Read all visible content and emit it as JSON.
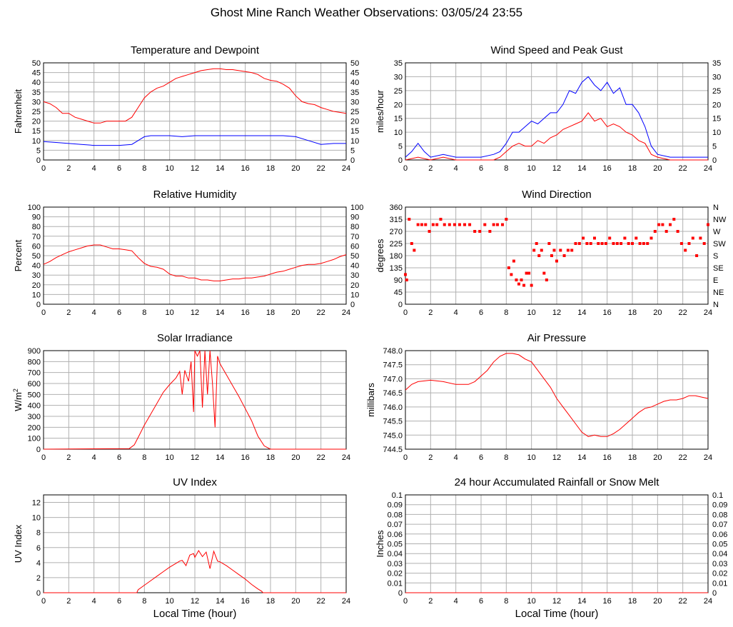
{
  "title": "Ghost Mine Ranch Weather Observations: 03/05/24 23:55",
  "x_axis_label": "Local Time (hour)",
  "colors": {
    "series_red": "#ff0000",
    "series_blue": "#0000ff",
    "grid": "#b0b0b0"
  },
  "chart_data": [
    {
      "id": "temp",
      "type": "line",
      "title": "Temperature and Dewpoint",
      "ylabel": "Fahrenheit",
      "xlim": [
        0,
        24
      ],
      "xticks": [
        0,
        2,
        4,
        6,
        8,
        10,
        12,
        14,
        16,
        18,
        20,
        22,
        24
      ],
      "ylim": [
        0,
        50
      ],
      "yticks": [
        0,
        5,
        10,
        15,
        20,
        25,
        30,
        35,
        40,
        45,
        50
      ],
      "right_axis": true,
      "grid": true,
      "series": [
        {
          "color": "red",
          "x": [
            0,
            0.5,
            1,
            1.5,
            2,
            2.5,
            3,
            3.5,
            4,
            4.5,
            5,
            5.5,
            6,
            6.5,
            7,
            7.5,
            8,
            8.5,
            9,
            9.5,
            10,
            10.5,
            11,
            11.5,
            12,
            12.5,
            13,
            13.5,
            14,
            14.5,
            15,
            15.5,
            16,
            16.5,
            17,
            17.5,
            18,
            18.5,
            19,
            19.5,
            20,
            20.5,
            21,
            21.5,
            22,
            22.5,
            23,
            23.5,
            24
          ],
          "y": [
            30,
            29,
            27,
            24,
            24,
            22,
            21,
            20,
            19,
            19,
            20,
            20,
            20,
            20,
            22,
            27,
            32,
            35,
            37,
            38,
            40,
            42,
            43,
            44,
            45,
            46,
            46.5,
            47,
            47,
            46.5,
            46.5,
            46,
            45.5,
            45,
            44,
            42,
            41,
            40.5,
            39,
            37,
            33,
            30,
            29,
            28.5,
            27,
            26,
            25,
            24.5,
            24
          ]
        },
        {
          "color": "blue",
          "x": [
            0,
            1,
            2,
            3,
            4,
            5,
            6,
            7,
            7.5,
            8,
            8.5,
            9,
            10,
            11,
            12,
            13,
            14,
            15,
            16,
            17,
            18,
            19,
            20,
            21,
            22,
            23,
            24
          ],
          "y": [
            9.5,
            9,
            8.5,
            8,
            7.5,
            7.5,
            7.5,
            8,
            10,
            12,
            12.5,
            12.5,
            12.5,
            12,
            12.5,
            12.5,
            12.5,
            12.5,
            12.5,
            12.5,
            12.5,
            12.5,
            12,
            10,
            8,
            8.5,
            8.5
          ]
        }
      ]
    },
    {
      "id": "wind",
      "type": "line",
      "title": "Wind Speed and Peak Gust",
      "ylabel": "miles/hour",
      "xlim": [
        0,
        24
      ],
      "xticks": [
        0,
        2,
        4,
        6,
        8,
        10,
        12,
        14,
        16,
        18,
        20,
        22,
        24
      ],
      "ylim": [
        0,
        35
      ],
      "yticks": [
        0,
        5,
        10,
        15,
        20,
        25,
        30,
        35
      ],
      "right_axis": true,
      "grid": true,
      "series": [
        {
          "color": "blue",
          "x": [
            0,
            0.5,
            1,
            1.5,
            2,
            3,
            4,
            5,
            6,
            7,
            7.5,
            8,
            8.5,
            9,
            9.5,
            10,
            10.5,
            11,
            11.5,
            12,
            12.5,
            13,
            13.5,
            14,
            14.5,
            15,
            15.5,
            16,
            16.5,
            17,
            17.5,
            18,
            18.5,
            19,
            19.5,
            20,
            21,
            22,
            23,
            24
          ],
          "y": [
            1,
            3,
            6,
            3,
            1,
            2,
            1,
            1,
            1,
            2,
            3,
            6,
            10,
            10,
            12,
            14,
            13,
            15,
            17,
            17,
            20,
            25,
            24,
            28,
            30,
            27,
            25,
            28,
            24,
            26,
            20,
            20,
            17,
            12,
            5,
            2,
            1,
            1,
            1,
            1
          ]
        },
        {
          "color": "red",
          "x": [
            0,
            1,
            2,
            3,
            4,
            5,
            6,
            7,
            7.5,
            8,
            8.5,
            9,
            9.5,
            10,
            10.5,
            11,
            11.5,
            12,
            12.5,
            13,
            13.5,
            14,
            14.5,
            15,
            15.5,
            16,
            16.5,
            17,
            17.5,
            18,
            18.5,
            19,
            19.5,
            20,
            21,
            22,
            23,
            24
          ],
          "y": [
            0,
            1,
            0,
            1,
            0,
            0,
            0,
            0,
            1,
            3,
            5,
            6,
            5,
            5,
            7,
            6,
            8,
            9,
            11,
            12,
            13,
            14,
            17,
            14,
            15,
            12,
            13,
            12,
            10,
            9,
            7,
            6,
            2,
            1,
            0,
            0,
            0,
            0
          ]
        }
      ]
    },
    {
      "id": "humidity",
      "type": "line",
      "title": "Relative Humidity",
      "ylabel": "Percent",
      "xlim": [
        0,
        24
      ],
      "xticks": [
        0,
        2,
        4,
        6,
        8,
        10,
        12,
        14,
        16,
        18,
        20,
        22,
        24
      ],
      "ylim": [
        0,
        100
      ],
      "yticks": [
        0,
        10,
        20,
        30,
        40,
        50,
        60,
        70,
        80,
        90,
        100
      ],
      "right_axis": true,
      "grid": true,
      "series": [
        {
          "color": "red",
          "x": [
            0,
            0.5,
            1,
            1.5,
            2,
            2.5,
            3,
            3.5,
            4,
            4.5,
            5,
            5.5,
            6,
            6.5,
            7,
            7.5,
            8,
            8.5,
            9,
            9.5,
            10,
            10.5,
            11,
            11.5,
            12,
            12.5,
            13,
            13.5,
            14,
            14.5,
            15,
            15.5,
            16,
            16.5,
            17,
            17.5,
            18,
            18.5,
            19,
            19.5,
            20,
            20.5,
            21,
            21.5,
            22,
            22.5,
            23,
            23.5,
            24
          ],
          "y": [
            41,
            44,
            48,
            51,
            54,
            56,
            58,
            60,
            61,
            61,
            59,
            57,
            57,
            56,
            55,
            48,
            42,
            39,
            38,
            36,
            31,
            29,
            29,
            27,
            27,
            25,
            25,
            24,
            24,
            25,
            26,
            26,
            27,
            27,
            28,
            29,
            31,
            33,
            34,
            36,
            38,
            40,
            41,
            41,
            42,
            44,
            46,
            49,
            51
          ]
        }
      ]
    },
    {
      "id": "winddir",
      "type": "scatter",
      "title": "Wind Direction",
      "ylabel": "degrees",
      "xlim": [
        0,
        24
      ],
      "xticks": [
        0,
        2,
        4,
        6,
        8,
        10,
        12,
        14,
        16,
        18,
        20,
        22,
        24
      ],
      "ylim": [
        0,
        360
      ],
      "yticks": [
        0,
        45,
        90,
        135,
        180,
        225,
        270,
        315,
        360
      ],
      "right_labels": [
        "N",
        "NE",
        "E",
        "SE",
        "S",
        "SW",
        "W",
        "NW",
        "N"
      ],
      "grid": true,
      "series": [
        {
          "color": "red",
          "x": [
            0,
            0.1,
            0.3,
            0.5,
            0.7,
            1,
            1.3,
            1.6,
            1.9,
            2.2,
            2.5,
            2.8,
            3.1,
            3.5,
            3.9,
            4.3,
            4.7,
            5.1,
            5.5,
            5.9,
            6.3,
            6.7,
            7,
            7.3,
            7.7,
            8,
            8.2,
            8.4,
            8.6,
            8.8,
            9,
            9.2,
            9.4,
            9.6,
            9.8,
            10,
            10.2,
            10.4,
            10.6,
            10.8,
            11,
            11.2,
            11.4,
            11.6,
            11.8,
            12,
            12.3,
            12.6,
            12.9,
            13.2,
            13.5,
            13.8,
            14.1,
            14.4,
            14.7,
            15,
            15.3,
            15.6,
            15.9,
            16.2,
            16.5,
            16.8,
            17.1,
            17.4,
            17.7,
            18,
            18.3,
            18.6,
            18.9,
            19.2,
            19.5,
            19.8,
            20.1,
            20.4,
            20.7,
            21,
            21.3,
            21.6,
            21.9,
            22.2,
            22.5,
            22.8,
            23.1,
            23.4,
            23.7,
            24
          ],
          "y": [
            110,
            90,
            315,
            225,
            200,
            295,
            295,
            295,
            270,
            295,
            295,
            315,
            295,
            295,
            295,
            295,
            295,
            295,
            270,
            270,
            295,
            270,
            295,
            295,
            295,
            315,
            135,
            110,
            160,
            90,
            75,
            90,
            70,
            115,
            115,
            70,
            200,
            225,
            180,
            200,
            115,
            90,
            225,
            180,
            200,
            160,
            200,
            180,
            200,
            200,
            225,
            225,
            245,
            225,
            225,
            245,
            225,
            225,
            225,
            245,
            225,
            225,
            225,
            245,
            225,
            225,
            245,
            225,
            225,
            225,
            245,
            270,
            295,
            295,
            270,
            295,
            315,
            270,
            225,
            200,
            225,
            245,
            180,
            245,
            225,
            295
          ]
        }
      ]
    },
    {
      "id": "solar",
      "type": "line",
      "title": "Solar Irradiance",
      "ylabel": "W/m",
      "ylabel_sup": "2",
      "xlim": [
        0,
        24
      ],
      "xticks": [
        0,
        2,
        4,
        6,
        8,
        10,
        12,
        14,
        16,
        18,
        20,
        22,
        24
      ],
      "ylim": [
        0,
        900
      ],
      "yticks": [
        0,
        100,
        200,
        300,
        400,
        500,
        600,
        700,
        800,
        900
      ],
      "right_axis": false,
      "grid": true,
      "series": [
        {
          "color": "red",
          "x": [
            0,
            6.8,
            7.2,
            7.6,
            8,
            8.5,
            9,
            9.5,
            10,
            10.5,
            10.8,
            11,
            11.2,
            11.5,
            11.7,
            11.9,
            12,
            12.2,
            12.4,
            12.6,
            12.8,
            13,
            13.2,
            13.4,
            13.6,
            13.8,
            14,
            14.5,
            15,
            15.5,
            16,
            16.5,
            17,
            17.5,
            18,
            24
          ],
          "y": [
            0,
            5,
            40,
            130,
            220,
            320,
            420,
            520,
            590,
            650,
            710,
            500,
            720,
            620,
            800,
            340,
            900,
            850,
            900,
            380,
            900,
            500,
            900,
            600,
            200,
            850,
            780,
            680,
            580,
            480,
            370,
            260,
            120,
            30,
            0,
            0
          ]
        }
      ]
    },
    {
      "id": "pressure",
      "type": "line",
      "title": "Air Pressure",
      "ylabel": "millibars",
      "xlim": [
        0,
        24
      ],
      "xticks": [
        0,
        2,
        4,
        6,
        8,
        10,
        12,
        14,
        16,
        18,
        20,
        22,
        24
      ],
      "ylim": [
        744.5,
        748.0
      ],
      "yticks": [
        744.5,
        745.0,
        745.5,
        746.0,
        746.5,
        747.0,
        747.5,
        748.0
      ],
      "ytick_format": "fixed1",
      "right_axis": false,
      "grid": true,
      "series": [
        {
          "color": "red",
          "x": [
            0,
            0.5,
            1,
            2,
            3,
            4,
            5,
            5.5,
            6,
            6.5,
            7,
            7.5,
            8,
            8.5,
            9,
            9.5,
            10,
            10.5,
            11,
            11.5,
            12,
            12.5,
            13,
            13.5,
            14,
            14.5,
            15,
            15.5,
            16,
            16.5,
            17,
            17.5,
            18,
            18.5,
            19,
            19.5,
            20,
            20.5,
            21,
            21.5,
            22,
            22.5,
            23,
            23.5,
            24
          ],
          "y": [
            746.6,
            746.8,
            746.9,
            746.95,
            746.9,
            746.8,
            746.8,
            746.9,
            747.1,
            747.3,
            747.6,
            747.8,
            747.9,
            747.9,
            747.85,
            747.7,
            747.6,
            747.3,
            747.0,
            746.7,
            746.3,
            746.0,
            745.7,
            745.4,
            745.1,
            744.95,
            745.0,
            744.95,
            744.95,
            745.05,
            745.2,
            745.4,
            745.6,
            745.8,
            745.95,
            746.0,
            746.1,
            746.2,
            746.25,
            746.25,
            746.3,
            746.4,
            746.4,
            746.35,
            746.3
          ]
        }
      ]
    },
    {
      "id": "uv",
      "type": "line",
      "title": "UV Index",
      "ylabel": "UV Index",
      "xlim": [
        0,
        24
      ],
      "xticks": [
        0,
        2,
        4,
        6,
        8,
        10,
        12,
        14,
        16,
        18,
        20,
        22,
        24
      ],
      "ylim": [
        0,
        13
      ],
      "yticks": [
        0,
        2,
        4,
        6,
        8,
        10,
        12
      ],
      "right_axis": false,
      "grid": true,
      "series": [
        {
          "color": "red",
          "x": [
            0,
            7.4,
            7.5,
            8,
            8.5,
            9,
            9.5,
            10,
            10.5,
            10.8,
            11,
            11.3,
            11.6,
            11.9,
            12,
            12.3,
            12.6,
            12.9,
            13.2,
            13.5,
            13.8,
            14,
            14.5,
            15,
            15.5,
            16,
            16.5,
            17,
            17.3,
            17.4,
            24
          ],
          "y": [
            0,
            0,
            0.4,
            1,
            1.6,
            2.2,
            2.8,
            3.4,
            3.9,
            4.2,
            4.3,
            3.6,
            5,
            5.2,
            4.7,
            5.6,
            4.8,
            5.4,
            3.2,
            5.5,
            4.2,
            4.1,
            3.6,
            3,
            2.4,
            1.8,
            1.1,
            0.5,
            0.2,
            0,
            0
          ]
        }
      ]
    },
    {
      "id": "rain",
      "type": "line",
      "title": "24 hour Accumulated Rainfall or Snow Melt",
      "ylabel": "Inches",
      "xlim": [
        0,
        24
      ],
      "xticks": [
        0,
        2,
        4,
        6,
        8,
        10,
        12,
        14,
        16,
        18,
        20,
        22,
        24
      ],
      "ylim": [
        0,
        0.1
      ],
      "yticks": [
        0,
        0.01,
        0.02,
        0.03,
        0.04,
        0.05,
        0.06,
        0.07,
        0.08,
        0.09,
        0.1
      ],
      "ytick_format": "rain",
      "right_axis": true,
      "grid": true,
      "series": [
        {
          "color": "red",
          "x": [
            0,
            24
          ],
          "y": [
            0,
            0
          ]
        }
      ]
    }
  ]
}
